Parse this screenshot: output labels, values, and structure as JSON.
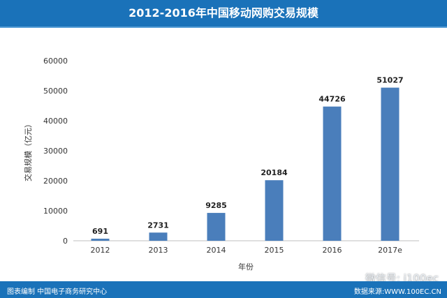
{
  "header": {
    "title": "2012-2016年中国移动网购交易规模"
  },
  "footer": {
    "left": "图表编制 中国电子商务研究中心",
    "right": "数据来源:WWW.100EC.CN"
  },
  "watermark": "微信号: i100ec",
  "chart_data": {
    "type": "bar",
    "title": "2012-2016年中国移动网购交易规模",
    "xlabel": "年份",
    "ylabel": "交易规模（亿元）",
    "categories": [
      "2012",
      "2013",
      "2014",
      "2015",
      "2016",
      "2017e"
    ],
    "values": [
      691,
      2731,
      9285,
      20184,
      44726,
      51027
    ],
    "data_labels": [
      "691",
      "2731",
      "9285",
      "20184",
      "44726",
      "51027"
    ],
    "ylim": [
      0,
      60000
    ],
    "yticks": [
      "0",
      "10000",
      "20000",
      "30000",
      "40000",
      "50000",
      "60000"
    ],
    "grid": false,
    "bar_color": "#4a7ebb"
  }
}
